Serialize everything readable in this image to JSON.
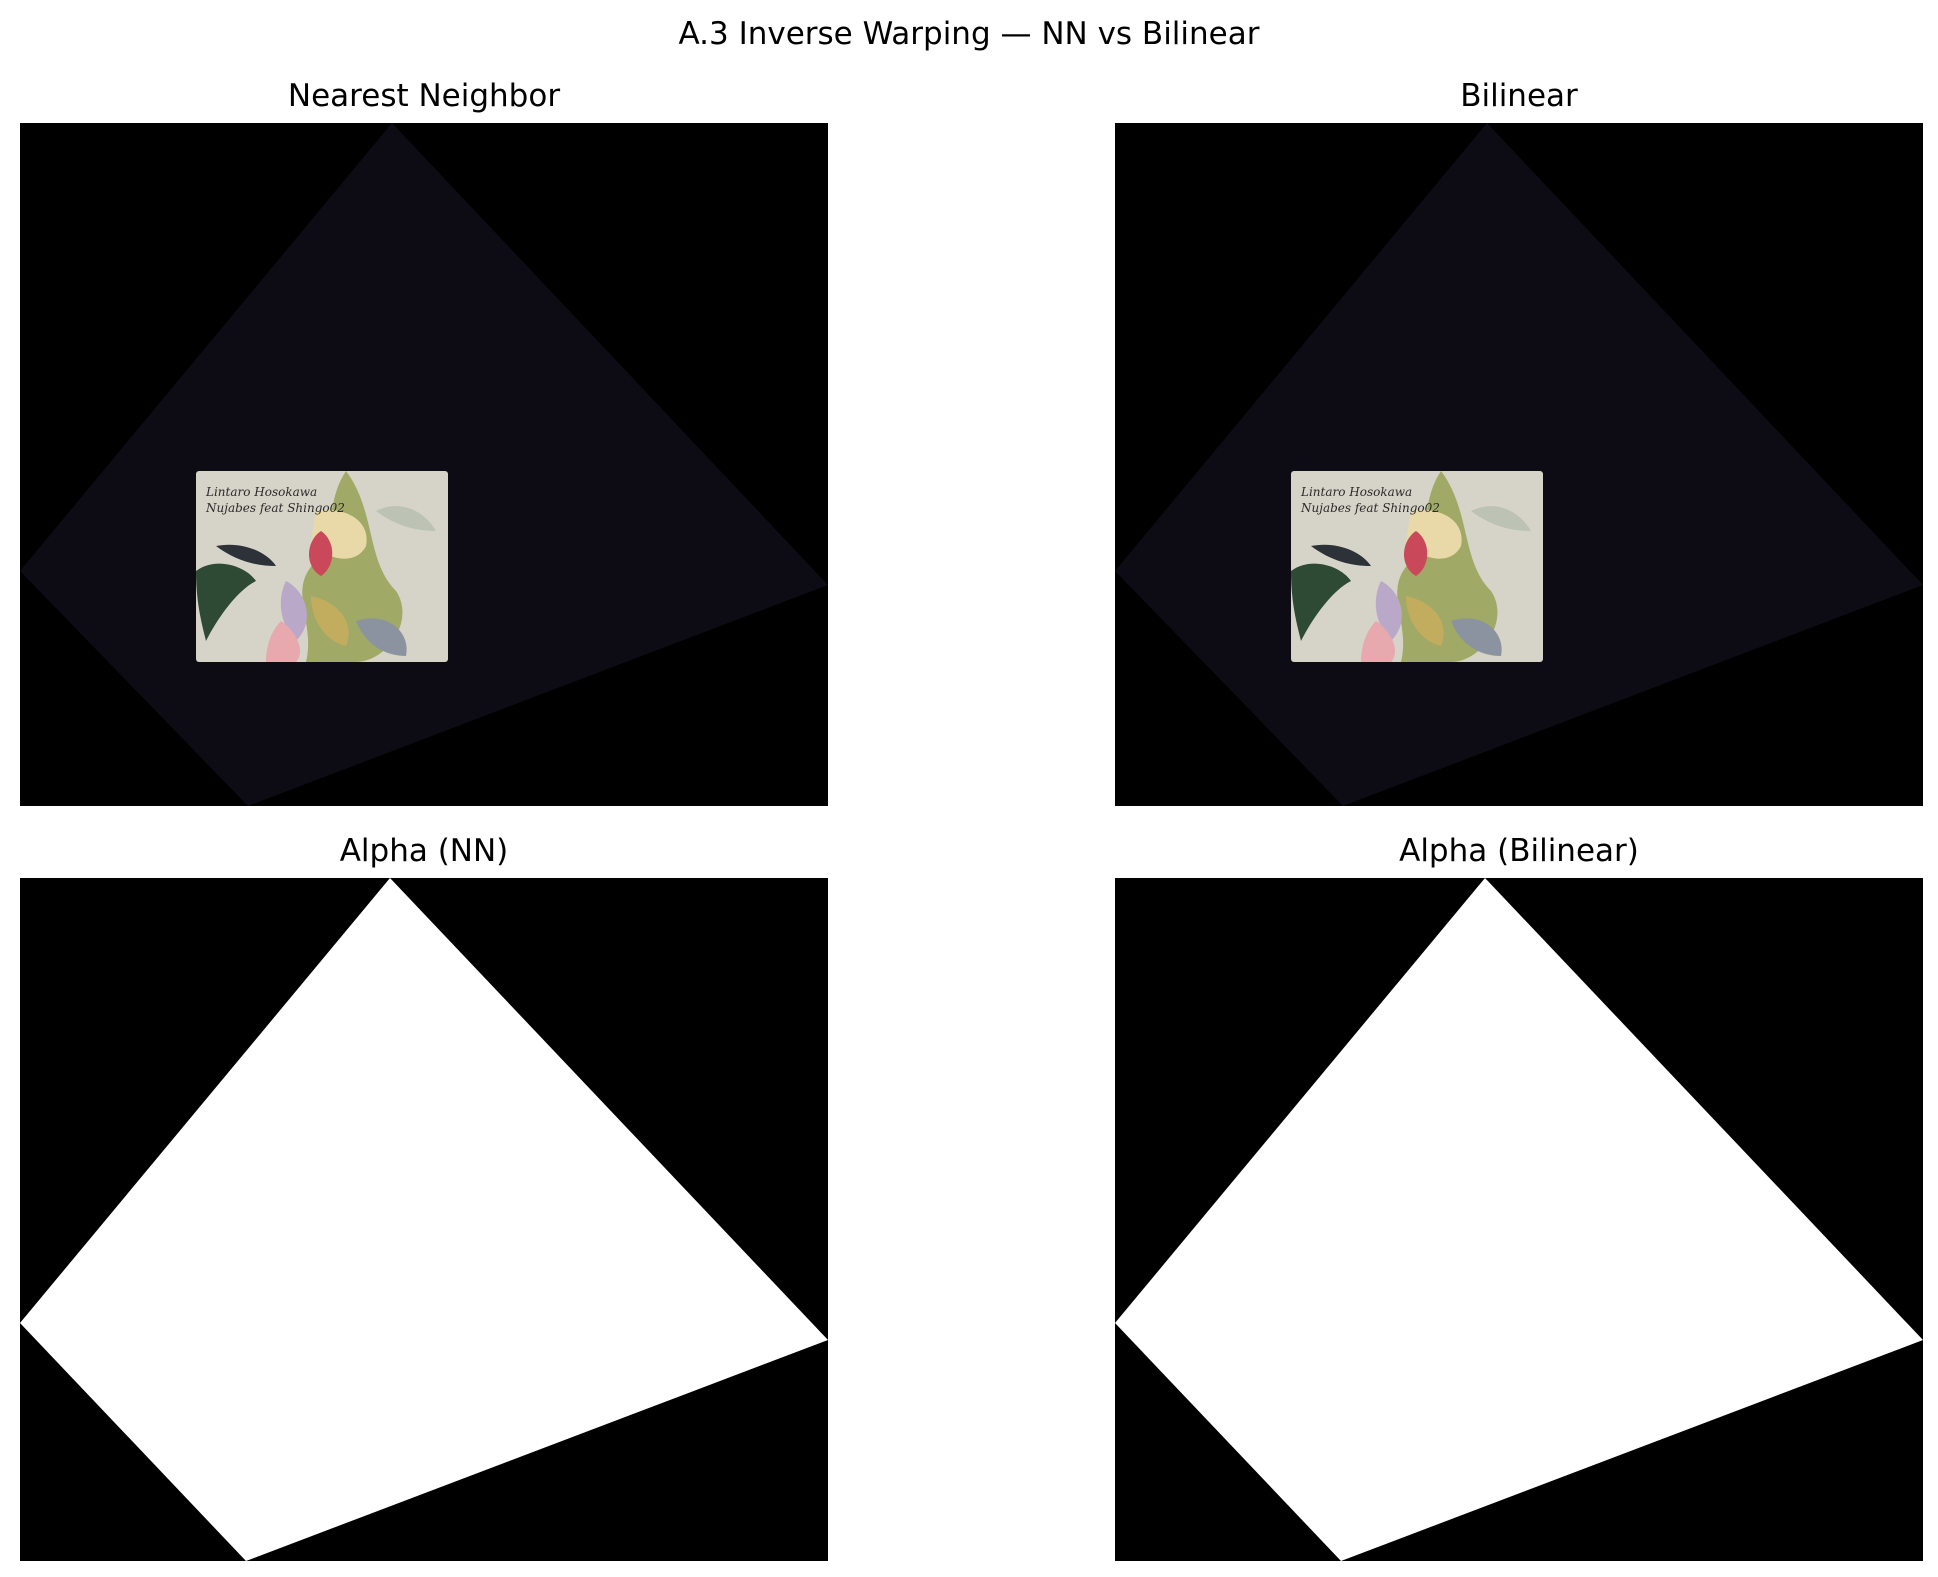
{
  "figure": {
    "title": "A.3 Inverse Warping — NN vs Bilinear"
  },
  "panels": [
    {
      "title": "Nearest Neighbor",
      "kind": "warped-image"
    },
    {
      "title": "Bilinear",
      "kind": "warped-image"
    },
    {
      "title": "Alpha (NN)",
      "kind": "alpha-mask"
    },
    {
      "title": "Alpha (Bilinear)",
      "kind": "alpha-mask"
    }
  ],
  "album_cover": {
    "text_line_1": "Lintaro Hosokawa",
    "text_line_2": "Nujabes feat Shingo02"
  },
  "colors": {
    "background": "#000000",
    "warp_region": "#0d0b14",
    "mask_fill": "#ffffff",
    "cover_base": "#d6d4c8"
  }
}
